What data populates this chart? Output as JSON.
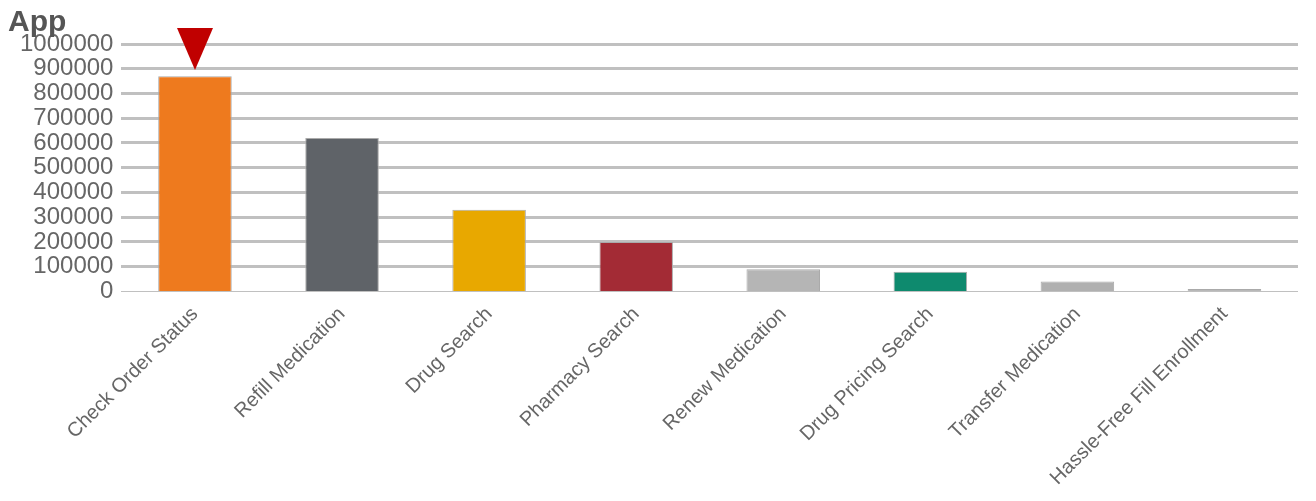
{
  "chart_data": {
    "type": "bar",
    "annotations": [
      "App"
    ],
    "categories": [
      "Check Order Status",
      "Refill Medication",
      "Drug Search",
      "Pharmacy Search",
      "Renew Medication",
      "Drug Pricing Search",
      "Transfer Medication",
      "Hassle-Free Fill Enrollment"
    ],
    "values": [
      870000,
      620000,
      330000,
      200000,
      90000,
      80000,
      40000,
      10000
    ],
    "colors": [
      "#ee7a1e",
      "#5f6368",
      "#e8a800",
      "#a32b35",
      "#b5b5b5",
      "#0e8a6e",
      "#b0b0b0",
      "#b8b8b8"
    ],
    "ylim": [
      0,
      1000000
    ],
    "yticks": [
      0,
      100000,
      200000,
      300000,
      400000,
      500000,
      600000,
      700000,
      800000,
      900000,
      1000000
    ],
    "grid": "y"
  }
}
